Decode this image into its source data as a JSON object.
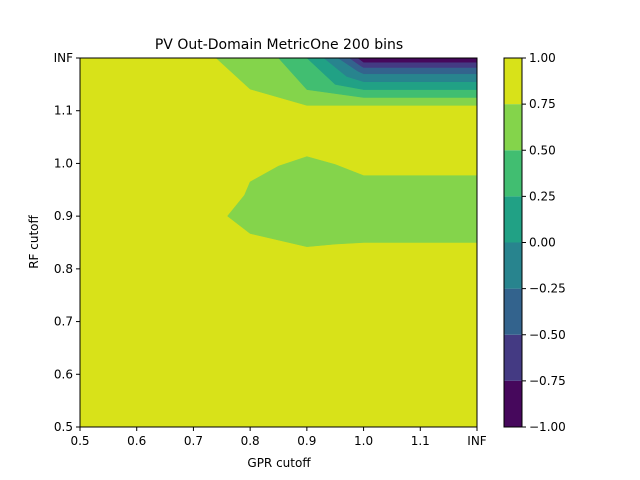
{
  "chart_data": {
    "type": "contourf",
    "title": "PV Out-Domain MetricOne 200 bins",
    "xlabel": "GPR cutoff",
    "ylabel": "RF cutoff",
    "x_ticks": [
      "0.5",
      "0.6",
      "0.7",
      "0.8",
      "0.9",
      "1.0",
      "1.1",
      "INF"
    ],
    "y_ticks": [
      "0.5",
      "0.6",
      "0.7",
      "0.8",
      "0.9",
      "1.0",
      "1.1",
      "INF"
    ],
    "xlim": [
      0.5,
      1.2
    ],
    "ylim": [
      0.5,
      1.2
    ],
    "grid": false,
    "colorbar": {
      "levels": [
        -1.0,
        -0.75,
        -0.5,
        -0.25,
        0.0,
        0.25,
        0.5,
        0.75,
        1.0
      ],
      "tick_labels": [
        "−1.00",
        "−0.75",
        "−0.50",
        "−0.25",
        "0.00",
        "0.25",
        "0.50",
        "0.75",
        "1.00"
      ],
      "colors": [
        "#46085c",
        "#443a83",
        "#33638d",
        "#28848e",
        "#21a185",
        "#41be71",
        "#84d44b",
        "#d8e219"
      ],
      "colormap": "viridis"
    },
    "regions": [
      {
        "level": "0.75 to 1.00",
        "color": "#d8e219",
        "polygon": [
          [
            0.5,
            0.5
          ],
          [
            1.2,
            0.5
          ],
          [
            1.2,
            1.2
          ],
          [
            0.5,
            1.2
          ]
        ]
      },
      {
        "level": "0.50 to 0.75",
        "color": "#84d44b",
        "polygon": [
          [
            0.76,
            0.9
          ],
          [
            0.79,
            0.94
          ],
          [
            0.8,
            0.965
          ],
          [
            0.85,
            0.995
          ],
          [
            0.9,
            1.013
          ],
          [
            0.95,
            0.998
          ],
          [
            1.0,
            0.977
          ],
          [
            1.2,
            0.977
          ],
          [
            1.2,
            0.85
          ],
          [
            1.0,
            0.85
          ],
          [
            0.95,
            0.847
          ],
          [
            0.9,
            0.842
          ],
          [
            0.8,
            0.867
          ]
        ]
      },
      {
        "level": "0.50 to 0.75",
        "color": "#84d44b",
        "polygon": [
          [
            0.74,
            1.2
          ],
          [
            0.8,
            1.141
          ],
          [
            0.9,
            1.11
          ],
          [
            1.2,
            1.11
          ],
          [
            1.2,
            1.2
          ]
        ]
      },
      {
        "level": "0.25 to 0.50",
        "color": "#41be71",
        "polygon": [
          [
            0.85,
            1.2
          ],
          [
            0.9,
            1.14
          ],
          [
            1.0,
            1.125
          ],
          [
            1.2,
            1.125
          ],
          [
            1.2,
            1.2
          ]
        ]
      },
      {
        "level": "0.00 to 0.25",
        "color": "#21a185",
        "polygon": [
          [
            0.9,
            1.2
          ],
          [
            0.95,
            1.15
          ],
          [
            1.0,
            1.14
          ],
          [
            1.2,
            1.14
          ],
          [
            1.2,
            1.2
          ]
        ]
      },
      {
        "level": "-0.25 to 0.00",
        "color": "#28848e",
        "polygon": [
          [
            0.93,
            1.2
          ],
          [
            0.97,
            1.165
          ],
          [
            1.0,
            1.155
          ],
          [
            1.2,
            1.155
          ],
          [
            1.2,
            1.2
          ]
        ]
      },
      {
        "level": "-0.50 to -0.25",
        "color": "#33638d",
        "polygon": [
          [
            0.955,
            1.2
          ],
          [
            0.99,
            1.175
          ],
          [
            1.0,
            1.17
          ],
          [
            1.2,
            1.17
          ],
          [
            1.2,
            1.2
          ]
        ]
      },
      {
        "level": "-0.75 to -0.50",
        "color": "#443a83",
        "polygon": [
          [
            0.975,
            1.2
          ],
          [
            0.995,
            1.185
          ],
          [
            1.0,
            1.182
          ],
          [
            1.2,
            1.182
          ],
          [
            1.2,
            1.2
          ]
        ]
      },
      {
        "level": "-1.00 to -0.75",
        "color": "#46085c",
        "polygon": [
          [
            0.99,
            1.2
          ],
          [
            1.0,
            1.192
          ],
          [
            1.2,
            1.192
          ],
          [
            1.2,
            1.2
          ]
        ]
      }
    ]
  }
}
